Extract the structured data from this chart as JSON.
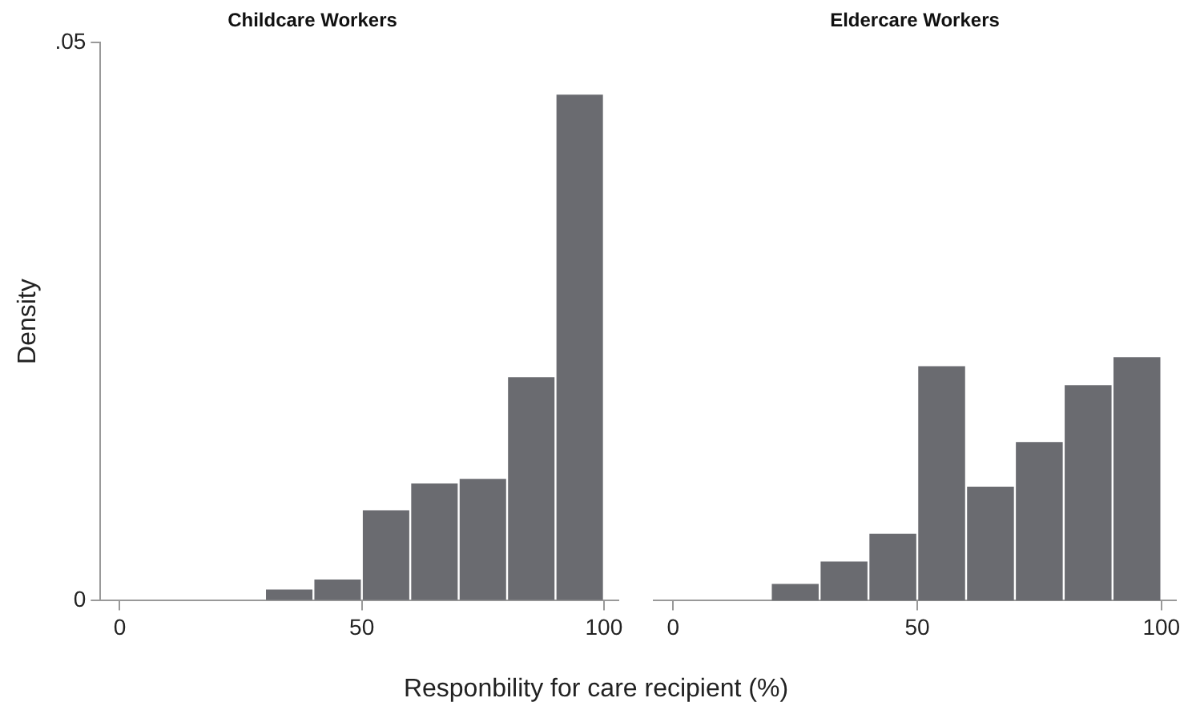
{
  "chart_data": [
    {
      "type": "histogram",
      "title": "Childcare Workers",
      "ylabel": "Density",
      "xlabel": "Responbility for care recipient (%)",
      "color": "#6a6b70",
      "bins": [
        0,
        10,
        20,
        30,
        40,
        50,
        60,
        70,
        80,
        90,
        100
      ],
      "values": [
        0,
        null,
        null,
        0.001,
        0.0019,
        0.0081,
        0.0105,
        0.0109,
        0.02,
        0.0453
      ],
      "xlim": [
        -4,
        103
      ],
      "xticks": [
        0,
        50,
        100
      ],
      "ylim": [
        0,
        0.05
      ],
      "yticks": [
        0,
        {
          "value": 0.05,
          "label": ".05"
        }
      ],
      "grid": false,
      "legend": false
    },
    {
      "type": "histogram",
      "title": "Eldercare Workers",
      "color": "#6a6b70",
      "bins": [
        0,
        10,
        20,
        30,
        40,
        50,
        60,
        70,
        80,
        90,
        100
      ],
      "values": [
        0,
        null,
        0.0015,
        0.0035,
        0.006,
        0.021,
        0.0102,
        0.0142,
        0.0193,
        0.0218
      ],
      "xlim": [
        -4,
        103
      ],
      "xticks": [
        0,
        50,
        100
      ],
      "ylim": [
        0,
        0.05
      ],
      "tick_labels": "x",
      "grid": false,
      "legend": false
    }
  ]
}
